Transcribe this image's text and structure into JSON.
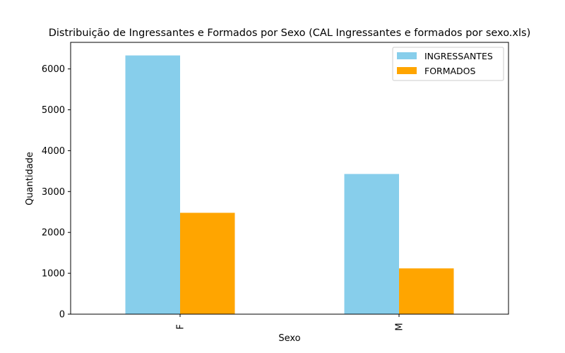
{
  "chart_data": {
    "type": "bar",
    "title": "Distribuição de Ingressantes e Formados por Sexo (CAL Ingressantes e formados por sexo.xls)",
    "xlabel": "Sexo",
    "ylabel": "Quantidade",
    "categories": [
      "F",
      "M"
    ],
    "series": [
      {
        "name": "INGRESSANTES",
        "color": "#87ceeb",
        "values": [
          6330,
          3430
        ]
      },
      {
        "name": "FORMADOS",
        "color": "#ffa500",
        "values": [
          2480,
          1120
        ]
      }
    ],
    "ylim": [
      0,
      6650
    ],
    "yticks": [
      0,
      1000,
      2000,
      3000,
      4000,
      5000,
      6000
    ],
    "grid": false,
    "legend_position": "top-right"
  }
}
